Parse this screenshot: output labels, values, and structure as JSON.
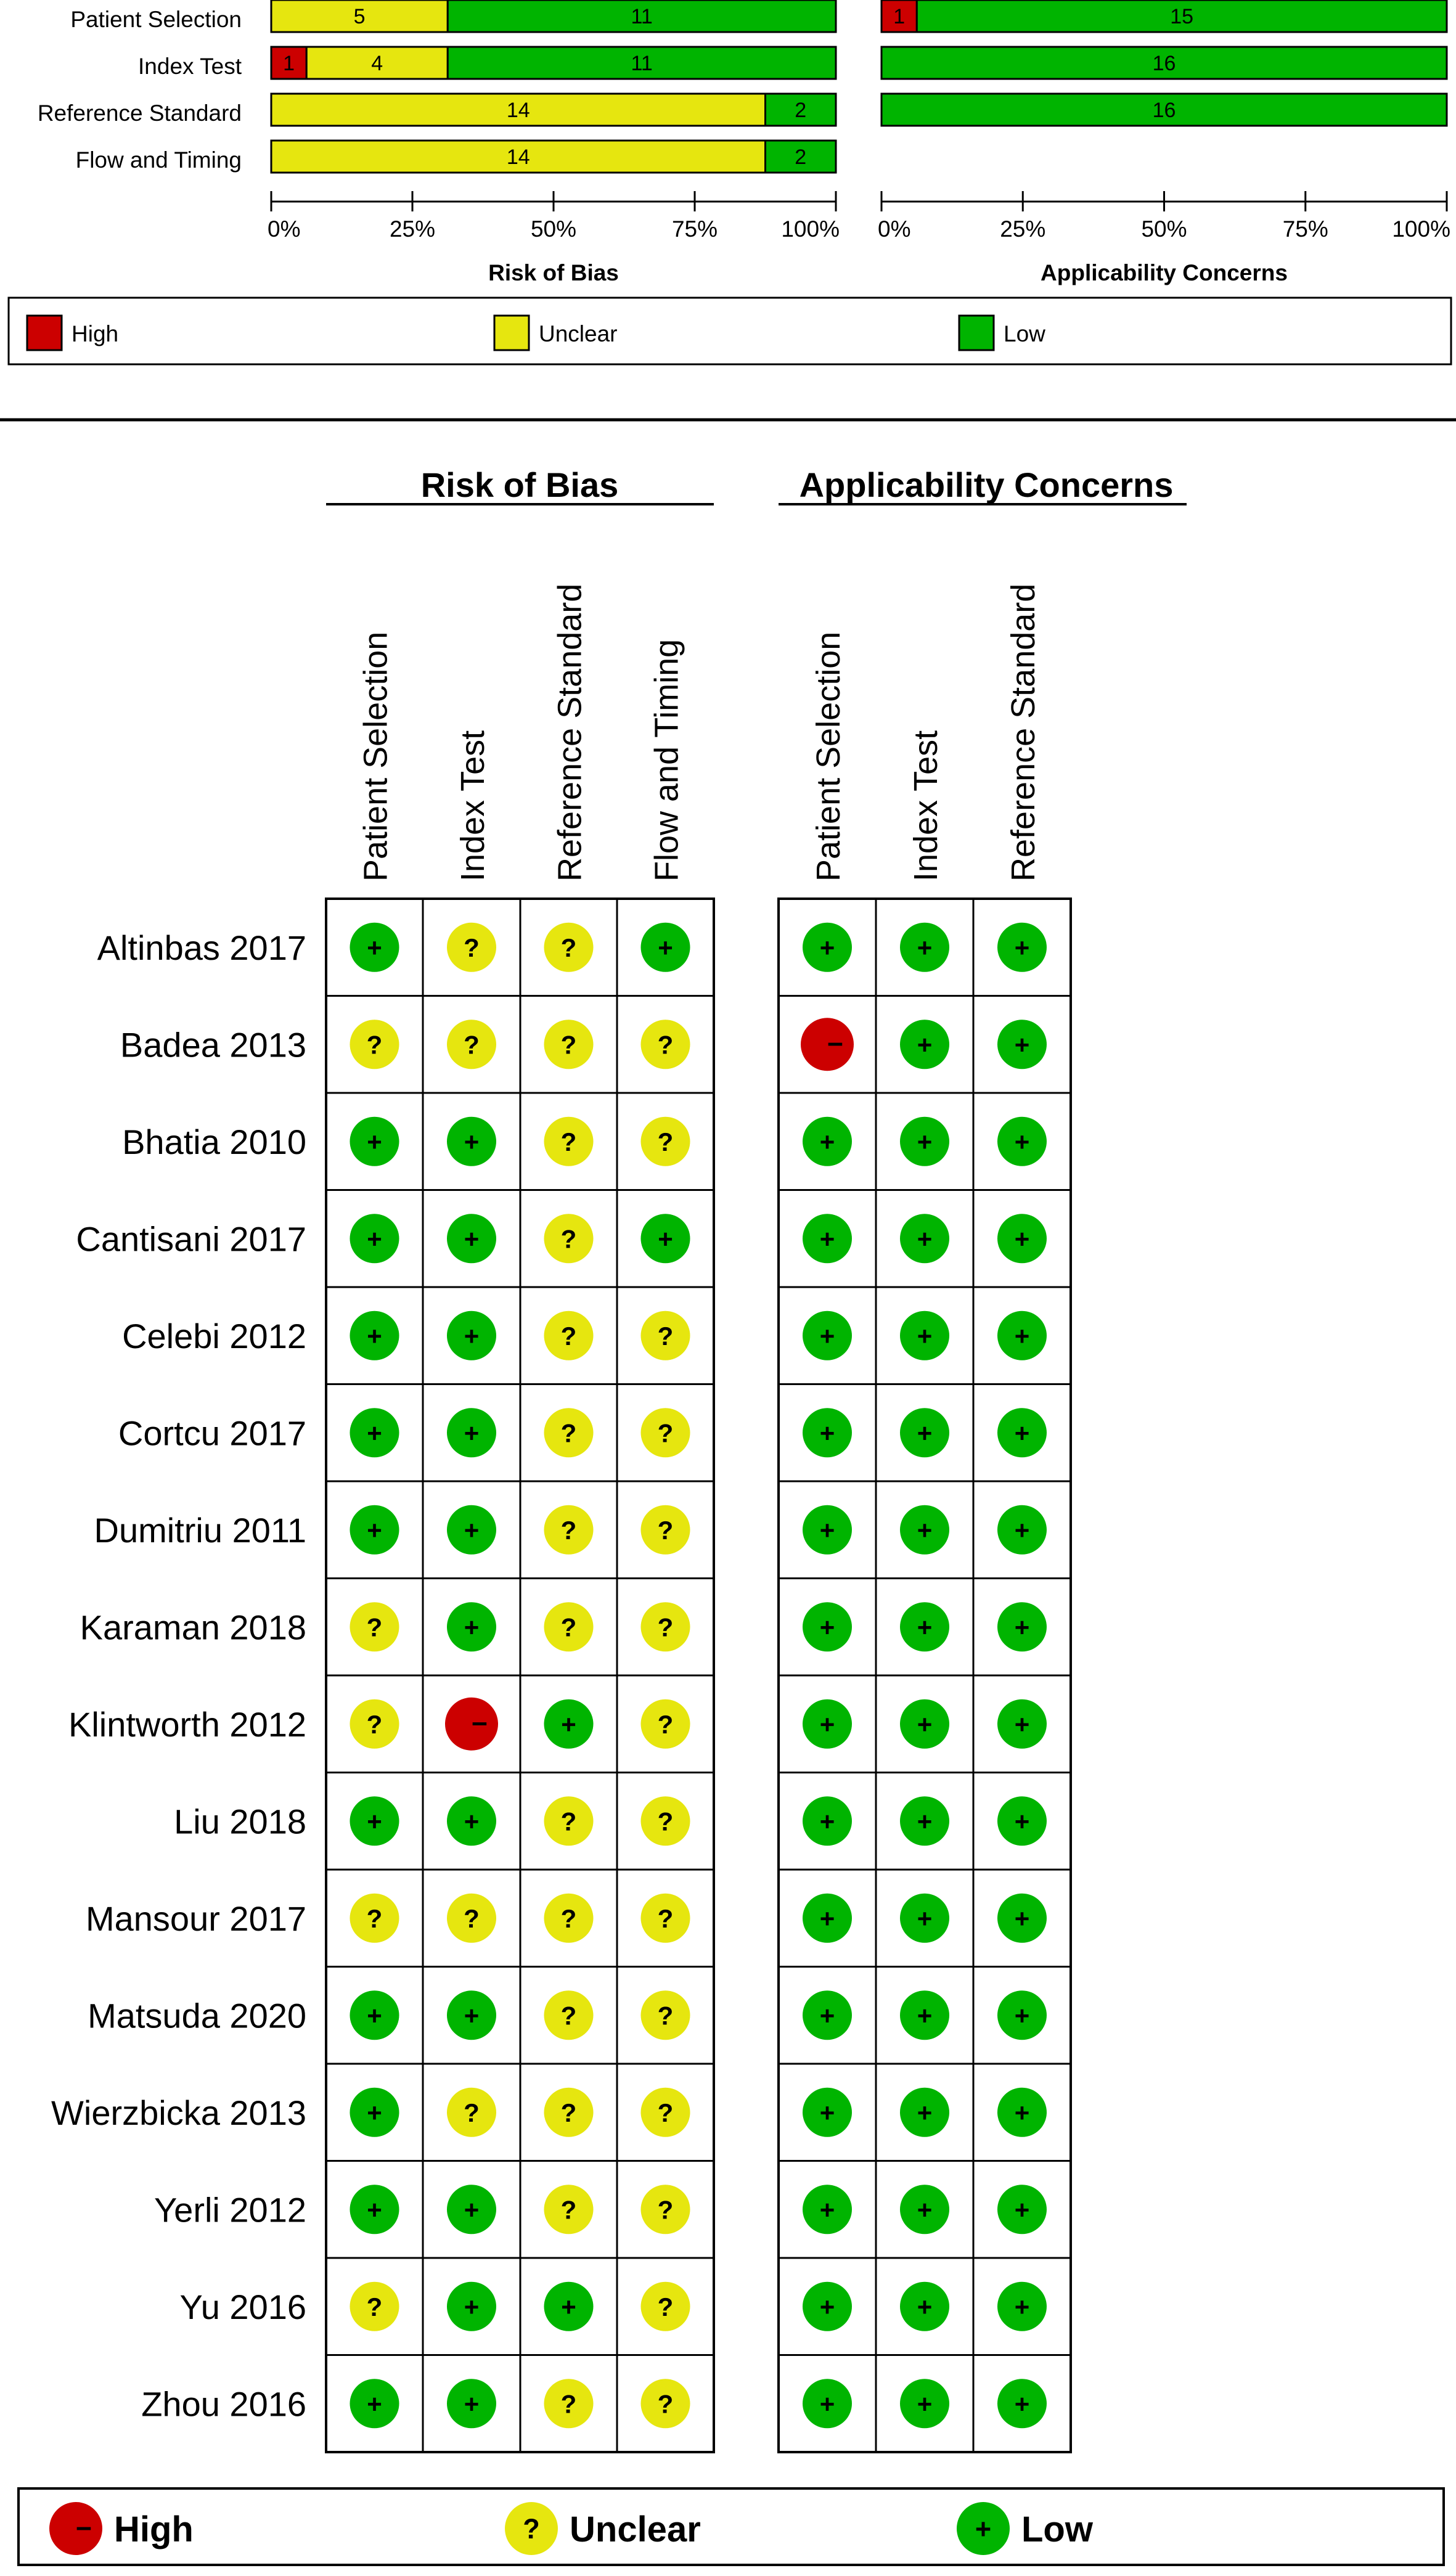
{
  "colors": {
    "high": "#cc0000",
    "unclear": "#e6e60f",
    "low": "#00b400",
    "border": "#000000",
    "text": "#000000"
  },
  "legend": {
    "high": "High",
    "unclear": "Unclear",
    "low": "Low"
  },
  "chart_data": [
    {
      "type": "bar",
      "orientation": "horizontal",
      "stacked": true,
      "title": "Risk of Bias",
      "categories": [
        "Patient Selection",
        "Index Test",
        "Reference Standard",
        "Flow and Timing"
      ],
      "series": [
        {
          "name": "High",
          "color": "#cc0000",
          "values": [
            0,
            1,
            0,
            0
          ]
        },
        {
          "name": "Unclear",
          "color": "#e6e60f",
          "values": [
            5,
            4,
            14,
            14
          ]
        },
        {
          "name": "Low",
          "color": "#00b400",
          "values": [
            11,
            11,
            2,
            2
          ]
        }
      ],
      "xticks": [
        "0%",
        "25%",
        "50%",
        "75%",
        "100%"
      ],
      "xlim": [
        0,
        100
      ],
      "legend_position": "bottom"
    },
    {
      "type": "bar",
      "orientation": "horizontal",
      "stacked": true,
      "title": "Applicability Concerns",
      "categories": [
        "Patient Selection",
        "Index Test",
        "Reference Standard"
      ],
      "series": [
        {
          "name": "High",
          "color": "#cc0000",
          "values": [
            1,
            0,
            0
          ]
        },
        {
          "name": "Unclear",
          "color": "#e6e60f",
          "values": [
            0,
            0,
            0
          ]
        },
        {
          "name": "Low",
          "color": "#00b400",
          "values": [
            15,
            16,
            16
          ]
        }
      ],
      "xticks": [
        "0%",
        "25%",
        "50%",
        "75%",
        "100%"
      ],
      "xlim": [
        0,
        100
      ],
      "legend_position": "bottom"
    },
    {
      "type": "table",
      "group_titles": [
        "Risk of Bias",
        "Applicability Concerns"
      ],
      "rob_columns": [
        "Patient Selection",
        "Index Test",
        "Reference Standard",
        "Flow and Timing"
      ],
      "ac_columns": [
        "Patient Selection",
        "Index Test",
        "Reference Standard"
      ],
      "symbols": {
        "high": "−",
        "unclear": "?",
        "low": "+"
      },
      "studies": [
        {
          "name": "Altinbas 2017",
          "rob": [
            "low",
            "unclear",
            "unclear",
            "low"
          ],
          "ac": [
            "low",
            "low",
            "low"
          ]
        },
        {
          "name": "Badea 2013",
          "rob": [
            "unclear",
            "unclear",
            "unclear",
            "unclear"
          ],
          "ac": [
            "high",
            "low",
            "low"
          ]
        },
        {
          "name": "Bhatia 2010",
          "rob": [
            "low",
            "low",
            "unclear",
            "unclear"
          ],
          "ac": [
            "low",
            "low",
            "low"
          ]
        },
        {
          "name": "Cantisani 2017",
          "rob": [
            "low",
            "low",
            "unclear",
            "low"
          ],
          "ac": [
            "low",
            "low",
            "low"
          ]
        },
        {
          "name": "Celebi 2012",
          "rob": [
            "low",
            "low",
            "unclear",
            "unclear"
          ],
          "ac": [
            "low",
            "low",
            "low"
          ]
        },
        {
          "name": "Cortcu 2017",
          "rob": [
            "low",
            "low",
            "unclear",
            "unclear"
          ],
          "ac": [
            "low",
            "low",
            "low"
          ]
        },
        {
          "name": "Dumitriu 2011",
          "rob": [
            "low",
            "low",
            "unclear",
            "unclear"
          ],
          "ac": [
            "low",
            "low",
            "low"
          ]
        },
        {
          "name": "Karaman 2018",
          "rob": [
            "unclear",
            "low",
            "unclear",
            "unclear"
          ],
          "ac": [
            "low",
            "low",
            "low"
          ]
        },
        {
          "name": "Klintworth 2012",
          "rob": [
            "unclear",
            "high",
            "low",
            "unclear"
          ],
          "ac": [
            "low",
            "low",
            "low"
          ]
        },
        {
          "name": "Liu 2018",
          "rob": [
            "low",
            "low",
            "unclear",
            "unclear"
          ],
          "ac": [
            "low",
            "low",
            "low"
          ]
        },
        {
          "name": "Mansour 2017",
          "rob": [
            "unclear",
            "unclear",
            "unclear",
            "unclear"
          ],
          "ac": [
            "low",
            "low",
            "low"
          ]
        },
        {
          "name": "Matsuda 2020",
          "rob": [
            "low",
            "low",
            "unclear",
            "unclear"
          ],
          "ac": [
            "low",
            "low",
            "low"
          ]
        },
        {
          "name": "Wierzbicka 2013",
          "rob": [
            "low",
            "unclear",
            "unclear",
            "unclear"
          ],
          "ac": [
            "low",
            "low",
            "low"
          ]
        },
        {
          "name": "Yerli 2012",
          "rob": [
            "low",
            "low",
            "unclear",
            "unclear"
          ],
          "ac": [
            "low",
            "low",
            "low"
          ]
        },
        {
          "name": "Yu 2016",
          "rob": [
            "unclear",
            "low",
            "low",
            "unclear"
          ],
          "ac": [
            "low",
            "low",
            "low"
          ]
        },
        {
          "name": "Zhou 2016",
          "rob": [
            "low",
            "low",
            "unclear",
            "unclear"
          ],
          "ac": [
            "low",
            "low",
            "low"
          ]
        }
      ]
    }
  ]
}
